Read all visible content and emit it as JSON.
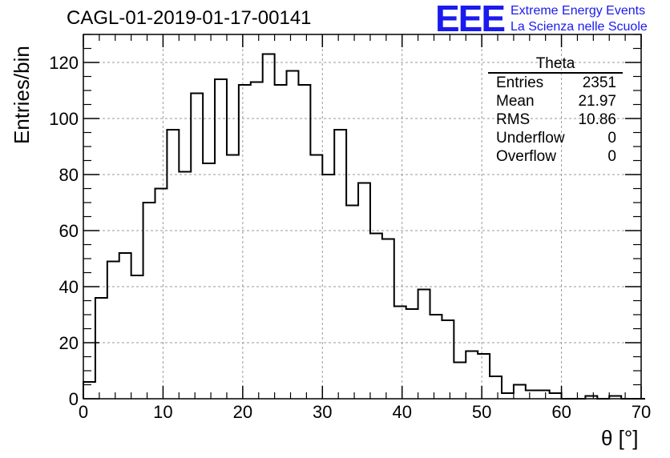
{
  "chart_data": {
    "type": "histogram",
    "title": "CAGL-01-2019-01-17-00141",
    "xlabel": "θ [°]",
    "ylabel": "Entries/bin",
    "xlim": [
      0,
      70
    ],
    "ylim": [
      0,
      130
    ],
    "bin_width": 1.5,
    "bin_start": 0,
    "values": [
      6,
      36,
      49,
      52,
      44,
      70,
      75,
      96,
      81,
      109,
      84,
      114,
      87,
      112,
      113,
      123,
      112,
      117,
      112,
      87,
      80,
      96,
      69,
      77,
      59,
      57,
      33,
      32,
      39,
      30,
      28,
      13,
      17,
      16,
      8,
      2,
      5,
      3,
      3,
      2,
      0,
      0,
      1,
      0,
      1,
      0,
      0
    ],
    "x_ticks": [
      0,
      10,
      20,
      30,
      40,
      50,
      60,
      70
    ],
    "y_ticks": [
      0,
      20,
      40,
      60,
      80,
      100,
      120
    ],
    "x_tick_labels": [
      "0",
      "10",
      "20",
      "30",
      "40",
      "50",
      "60",
      "70"
    ],
    "y_tick_labels": [
      "0",
      "20",
      "40",
      "60",
      "80",
      "100",
      "120"
    ],
    "grid": true,
    "line_color": "#000000",
    "grid_color": "#9a9a9a"
  },
  "stats_box": {
    "title": "Theta",
    "rows": [
      {
        "label": "Entries",
        "value": "2351"
      },
      {
        "label": "Mean",
        "value": "21.97"
      },
      {
        "label": "RMS",
        "value": "10.86"
      },
      {
        "label": "Underflow",
        "value": "0"
      },
      {
        "label": "Overflow",
        "value": "0"
      }
    ]
  },
  "logo": {
    "mark": "EEE",
    "line1": "Extreme Energy Events",
    "line2": "La Scienza nelle Scuole",
    "color": "#1a1aee"
  }
}
